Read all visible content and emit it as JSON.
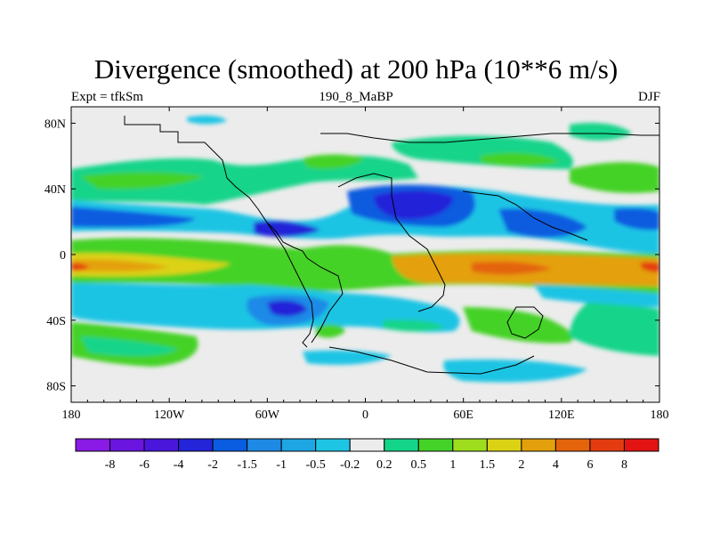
{
  "title": "Divergence (smoothed) at 200 hPa (10**6 m/s)",
  "subtitle_left": "Expt = tfkSm",
  "subtitle_center": "190_8_MaBP",
  "subtitle_right": "DJF",
  "chart_data": {
    "type": "heatmap",
    "projection": "cylindrical-equidistant",
    "variable": "Divergence (smoothed) at 200 hPa",
    "units": "10**6 m/s",
    "season": "DJF",
    "lon_range": [
      -180,
      180
    ],
    "lat_range": [
      -90,
      90
    ],
    "x_ticks": [
      {
        "value": -180,
        "label": "180"
      },
      {
        "value": -120,
        "label": "120W"
      },
      {
        "value": -60,
        "label": "60W"
      },
      {
        "value": 0,
        "label": "0"
      },
      {
        "value": 60,
        "label": "60E"
      },
      {
        "value": 120,
        "label": "120E"
      },
      {
        "value": 180,
        "label": "180"
      }
    ],
    "y_ticks": [
      {
        "value": 80,
        "label": "80N"
      },
      {
        "value": 40,
        "label": "40N"
      },
      {
        "value": 0,
        "label": "0"
      },
      {
        "value": -40,
        "label": "40S"
      },
      {
        "value": -80,
        "label": "80S"
      }
    ],
    "colorbar": {
      "levels": [
        "-8",
        "-6",
        "-4",
        "-2",
        "-1.5",
        "-1",
        "-0.5",
        "-0.2",
        "0.2",
        "0.5",
        "1",
        "1.5",
        "2",
        "4",
        "6",
        "8"
      ],
      "colors": [
        "#8a1ae6",
        "#6a16e0",
        "#4a16dc",
        "#2424d8",
        "#0a5ce0",
        "#1e8ae6",
        "#1ea6e4",
        "#1ec4e4",
        "#ececec",
        "#14d48a",
        "#44d228",
        "#9edc1e",
        "#dcd214",
        "#e4a00c",
        "#e4640c",
        "#e43c10",
        "#e41414"
      ]
    },
    "features": [
      {
        "name": "Subtropical positive band, southern Indian Ocean / Africa",
        "lon_start": 0,
        "lon_end": 180,
        "lat_start": -5,
        "lat_end": -25,
        "value_range": "2 to 6"
      },
      {
        "name": "Strong positive core, eastern Pacific",
        "lon_start": -180,
        "lon_end": -140,
        "lat_start": -5,
        "lat_end": -18,
        "value_range": "4 to 6"
      },
      {
        "name": "Negative center, Middle East / Central Asia",
        "lon_start": 20,
        "lon_end": 60,
        "lat_start": 20,
        "lat_end": 40,
        "value_range": "-4 to -2"
      },
      {
        "name": "Negative center, South America",
        "lon_start": -60,
        "lon_end": -40,
        "lat_start": -25,
        "lat_end": -40,
        "value_range": "-2 to -1"
      },
      {
        "name": "Negative band, northern Pacific",
        "lon_start": -180,
        "lon_end": -80,
        "lat_start": 10,
        "lat_end": 30,
        "value_range": "-1.5 to -0.5"
      },
      {
        "name": "Positive band, North Pacific 40N",
        "lon_start": -180,
        "lon_end": -60,
        "lat_start": 35,
        "lat_end": 55,
        "value_range": "0.5 to 2"
      }
    ]
  }
}
